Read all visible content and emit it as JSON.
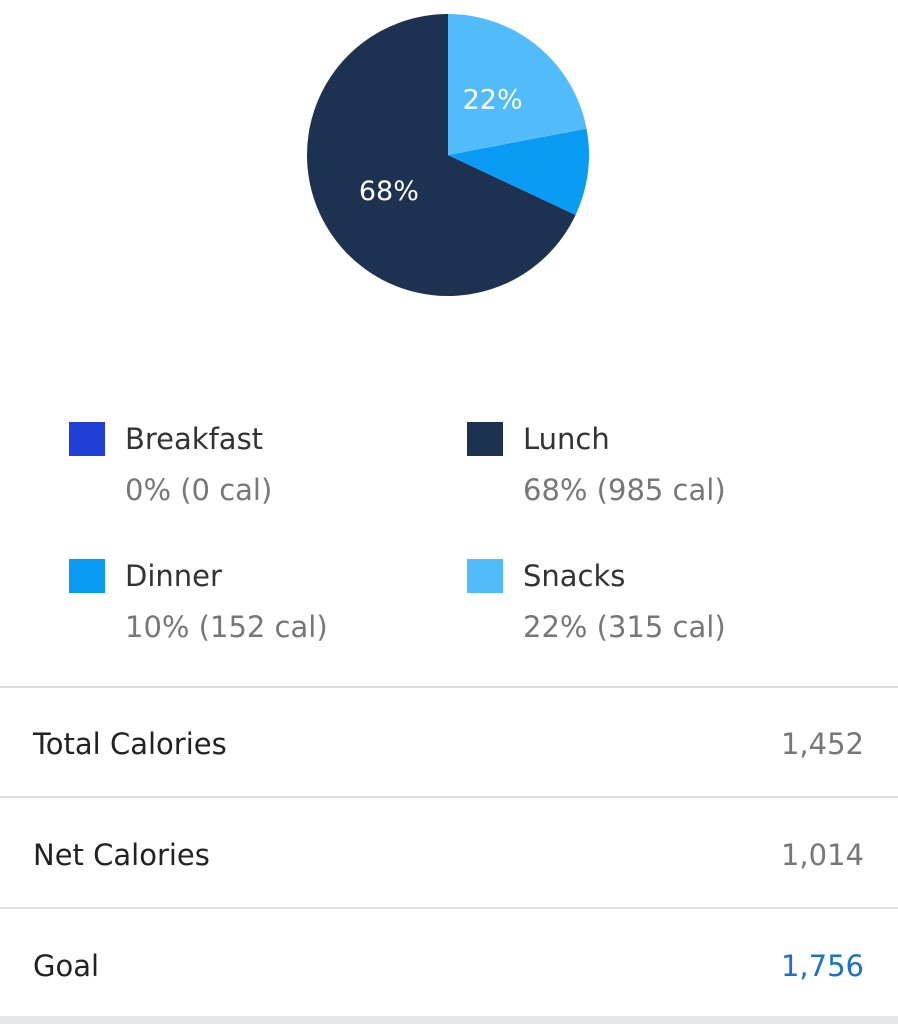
{
  "chart_data": {
    "type": "pie",
    "categories": [
      "Breakfast",
      "Lunch",
      "Dinner",
      "Snacks"
    ],
    "values": [
      0,
      68,
      10,
      22
    ],
    "value_labels": [
      null,
      "68%",
      null,
      "22%"
    ],
    "colors": [
      "#1f3fd6",
      "#1d3250",
      "#0a9cf5",
      "#52bcfb"
    ],
    "legend_details": [
      "0% (0 cal)",
      "68% (985 cal)",
      "10% (152 cal)",
      "22% (315 cal)"
    ]
  },
  "summary": {
    "rows": [
      {
        "label": "Total Calories",
        "value": "1,452"
      },
      {
        "label": "Net Calories",
        "value": "1,014"
      },
      {
        "label": "Goal",
        "value": "1,756"
      }
    ]
  }
}
